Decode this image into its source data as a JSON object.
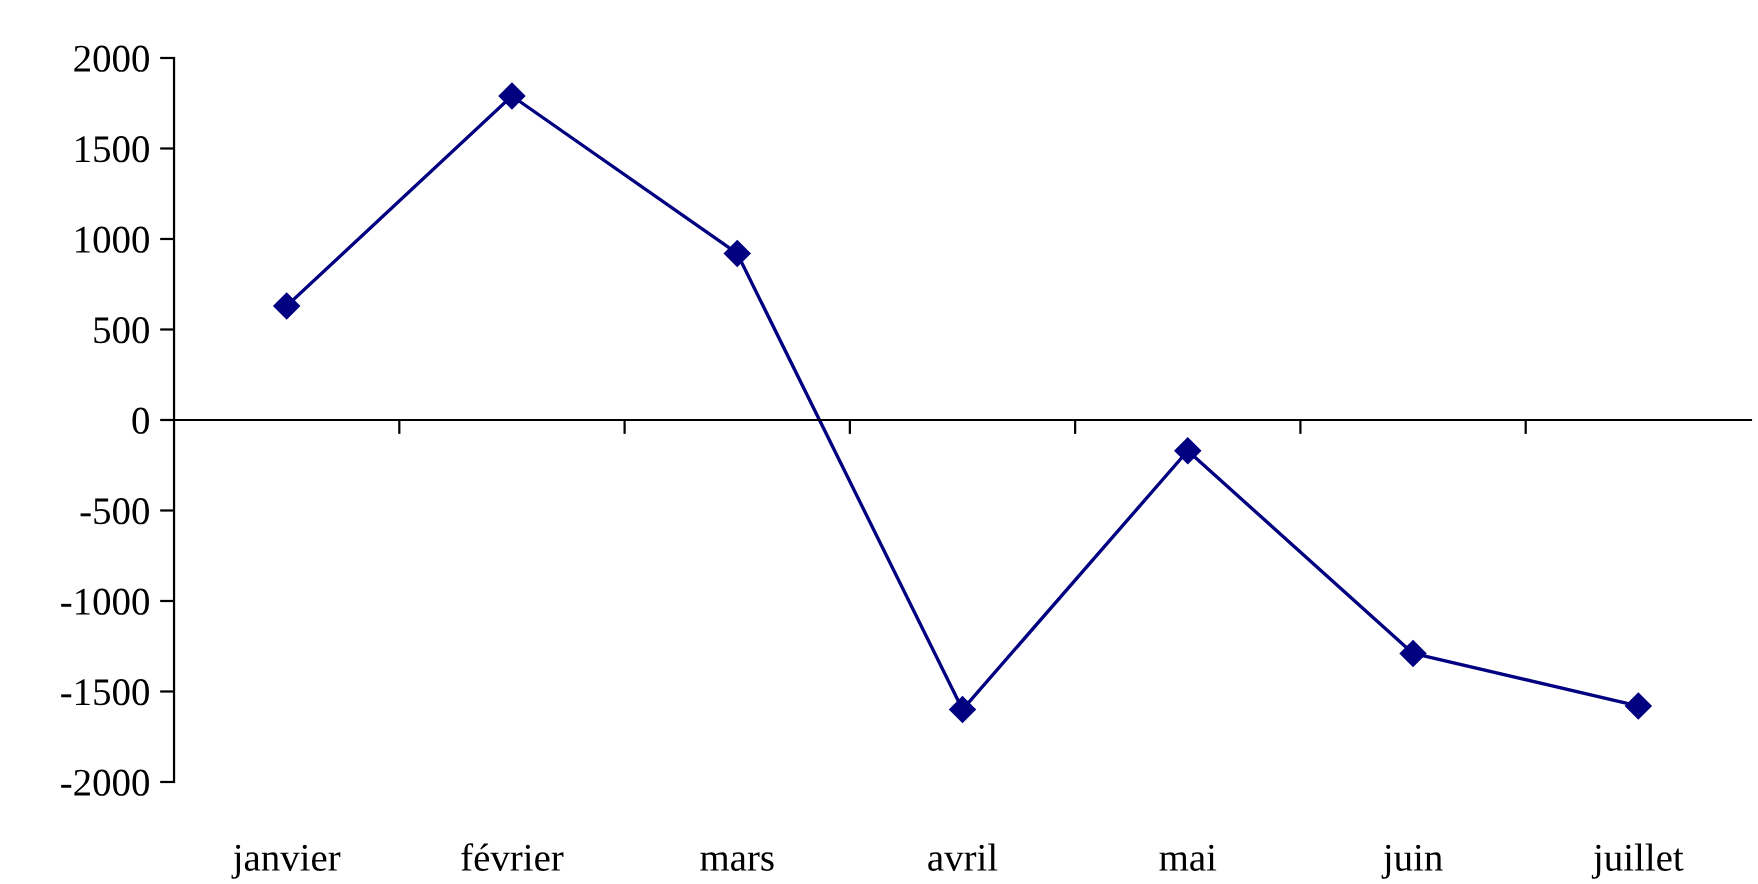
{
  "chart_data": {
    "type": "line",
    "categories": [
      "janvier",
      "février",
      "mars",
      "avril",
      "mai",
      "juin",
      "juillet"
    ],
    "series": [
      {
        "color": "#000080",
        "values": [
          630,
          1790,
          920,
          -1600,
          -170,
          -1290,
          -1580
        ]
      }
    ],
    "ylim": [
      -2000,
      2000
    ],
    "yticks": [
      -2000,
      -1500,
      -1000,
      -500,
      0,
      500,
      1000,
      1500,
      2000
    ],
    "marker": "diamond",
    "line_style": "solid",
    "legend": false
  }
}
